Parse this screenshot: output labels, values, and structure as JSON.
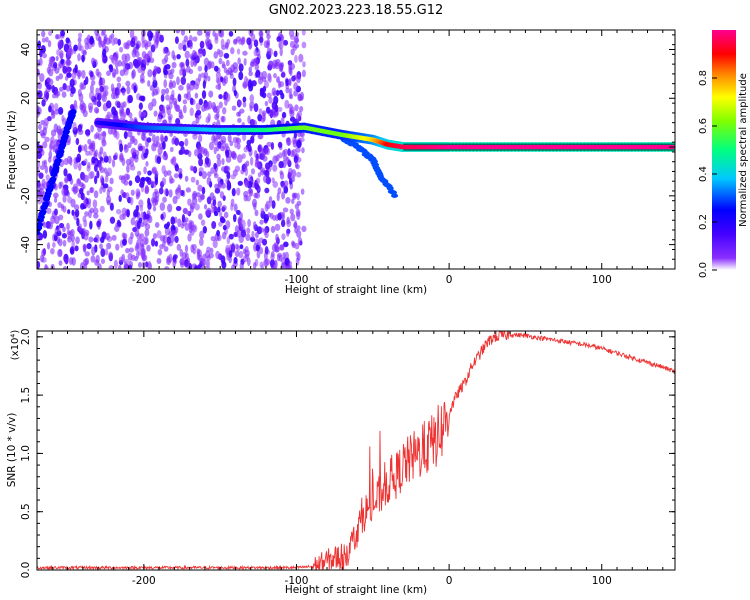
{
  "figure_title": "GN02.2023.223.18.55.G12",
  "colors": {
    "snr_line": "#ee3333",
    "colormap": [
      "#ffffff",
      "#6a00ff",
      "#0000ff",
      "#00c0ff",
      "#00ff70",
      "#ffff00",
      "#ff8000",
      "#ff0000",
      "#ff0090"
    ]
  },
  "chart_data": [
    {
      "type": "heatmap",
      "title": "",
      "xlabel": "Height of straight line (km)",
      "ylabel": "Frequency (Hz)",
      "xlim": [
        -270,
        148
      ],
      "ylim": [
        -50,
        48
      ],
      "xticks": [
        -200,
        -100,
        0,
        100
      ],
      "xtick_labels": [
        "-200",
        "-100",
        "0",
        "100"
      ],
      "yticks": [
        -40,
        -20,
        0,
        20,
        40
      ],
      "ytick_labels": [
        "-40",
        "-20",
        "0",
        "20",
        "40"
      ],
      "grid": false,
      "colorbar": {
        "label": "Normalized spectral amplitude",
        "range": [
          0.0,
          1.0
        ],
        "ticks": [
          0.0,
          0.2,
          0.4,
          0.6,
          0.8
        ],
        "tick_labels": [
          "0.0",
          "0.2",
          "0.4",
          "0.6",
          "0.8"
        ],
        "placement": "right"
      },
      "features": [
        {
          "name": "noise region",
          "x_range": [
            -270,
            -95
          ],
          "freq_range": [
            -50,
            48
          ],
          "amplitude": 0.1
        },
        {
          "name": "rising track",
          "x": [
            -270,
            -262,
            -255,
            -250,
            -246
          ],
          "freq": [
            -35,
            -18,
            -3,
            8,
            15
          ],
          "amplitude": 0.25
        },
        {
          "name": "main line",
          "x": [
            -230,
            -200,
            -150,
            -120,
            -95,
            -70,
            -50,
            -40,
            -30,
            0,
            50,
            100,
            148
          ],
          "freq": [
            10,
            8,
            7,
            7,
            8,
            5,
            3,
            1,
            0,
            0,
            0,
            0,
            0
          ],
          "amplitude": [
            0.2,
            0.3,
            0.4,
            0.5,
            0.6,
            0.6,
            0.75,
            0.9,
            0.95,
            1.0,
            1.0,
            1.0,
            1.0
          ]
        },
        {
          "name": "decaying branch",
          "x": [
            -70,
            -60,
            -50,
            -45,
            -35
          ],
          "freq": [
            4,
            0,
            -5,
            -12,
            -20
          ],
          "amplitude": 0.3
        }
      ]
    },
    {
      "type": "line",
      "title": "",
      "xlabel": "Height of straight line (km)",
      "ylabel": "SNR (10 * v/v)",
      "y_multiplier": "(x10⁴)",
      "xlim": [
        -270,
        148
      ],
      "ylim": [
        0,
        2.05
      ],
      "xticks": [
        -200,
        -100,
        0,
        100
      ],
      "xtick_labels": [
        "-200",
        "-100",
        "0",
        "100"
      ],
      "yticks": [
        0.0,
        0.5,
        1.0,
        1.5,
        2.0
      ],
      "ytick_labels": [
        "0.0",
        "0.5",
        "1.0",
        "1.5",
        "2.0"
      ],
      "grid": false,
      "series": [
        {
          "x": [
            -270,
            -250,
            -200,
            -150,
            -100,
            -90,
            -85,
            -80,
            -75,
            -70,
            -65,
            -60,
            -55,
            -50,
            -45,
            -40,
            -35,
            -30,
            -25,
            -20,
            -15,
            -10,
            -5,
            0,
            5,
            10,
            15,
            20,
            25,
            30,
            40,
            50,
            60,
            70,
            80,
            90,
            100,
            110,
            120,
            130,
            140,
            148
          ],
          "y": [
            0.02,
            0.02,
            0.02,
            0.02,
            0.02,
            0.03,
            0.05,
            0.08,
            0.1,
            0.12,
            0.18,
            0.35,
            0.5,
            0.55,
            0.65,
            0.75,
            0.8,
            0.9,
            0.95,
            1.0,
            1.05,
            1.1,
            1.2,
            1.35,
            1.5,
            1.6,
            1.75,
            1.85,
            1.95,
            2.0,
            2.02,
            2.01,
            1.99,
            1.97,
            1.95,
            1.93,
            1.9,
            1.86,
            1.82,
            1.78,
            1.74,
            1.7
          ]
        }
      ]
    }
  ]
}
